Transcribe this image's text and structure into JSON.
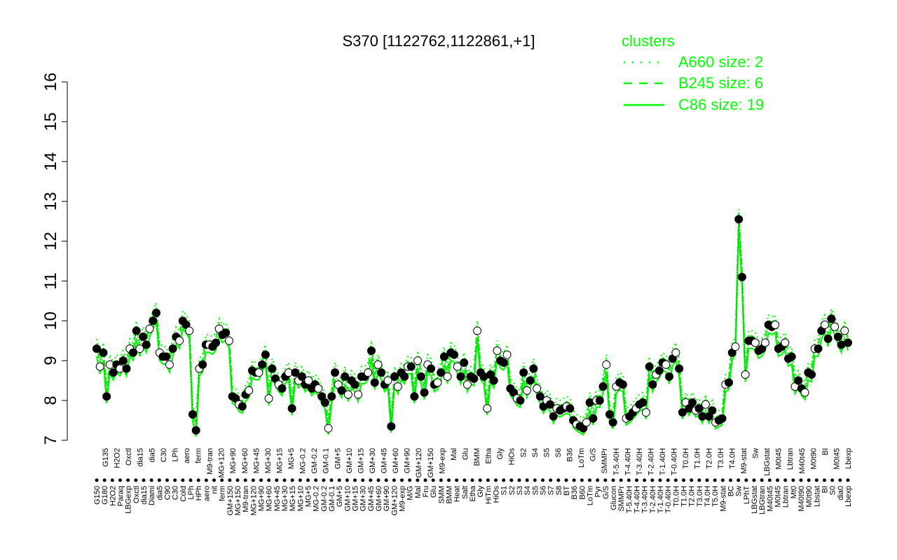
{
  "colors": {
    "line": "#00ff00",
    "axis": "#000000",
    "point_stroke": "#000000",
    "point_fill_open": "#ffffff",
    "point_fill_closed": "#000000"
  },
  "chart_data": {
    "type": "line",
    "title": "S370 [1122762,1122861,+1]",
    "xlabel": "",
    "ylabel": "",
    "ylim": [
      7,
      16
    ],
    "yticks": [
      7,
      8,
      9,
      10,
      11,
      12,
      13,
      14,
      15,
      16
    ],
    "legend": {
      "title": "clusters",
      "placement": "top-right",
      "entries": [
        {
          "label": "A660 size: 2",
          "style": "dotted"
        },
        {
          "label": "B245 size: 6",
          "style": "dashed"
        },
        {
          "label": "C86 size: 19",
          "style": "solid"
        }
      ]
    },
    "x_tick_labels": [
      "G150",
      "G180",
      "H2O2",
      "Paraq",
      "LBGexp",
      "Oxctl",
      "dia15",
      "Diami",
      "dia5",
      "C90",
      "C30",
      "Cold",
      "LPh",
      "HPh",
      "aero",
      "nit",
      "ferm",
      "GM+150",
      "MG+150",
      "M9-tran",
      "MG+120",
      "MG+90",
      "MG+60",
      "MG+45",
      "MG+30",
      "MG+15",
      "MG+10",
      "MG+5",
      "MG-0.2",
      "GM-0.2",
      "GM-0.1",
      "GM+5",
      "GM+10",
      "GM+15",
      "GM+30",
      "GM+45",
      "GM+60",
      "GM+90",
      "GM+120",
      "M9-exp",
      "M/G",
      "Mal",
      "Fru",
      "Glu",
      "SMM",
      "BMM",
      "Heat",
      "Salt",
      "Etha",
      "Gly",
      "HiTm",
      "HiOs",
      "S1",
      "S2",
      "S3",
      "S4",
      "S5",
      "S6",
      "S7",
      "S8",
      "BT",
      "B36",
      "B60",
      "LoTm",
      "Pyr",
      "G/S",
      "Glucon",
      "SMMPr",
      "T-5.40H",
      "T-4.40H",
      "T-3.40H",
      "T-2.40H",
      "T-1.40H",
      "T-0.40H",
      "T0.0H",
      "T1.0H",
      "T2.0H",
      "T3.0H",
      "T4.0H",
      "T5.0H",
      "M9-stat",
      "BC",
      "Sw",
      "LPhT",
      "LBGstat",
      "LBGtran",
      "M40t45",
      "M0t45",
      "Lbtran",
      "Mt0",
      "M40t90",
      "M0t90",
      "Lbstat",
      "BI",
      "S0",
      "dia0",
      "Lbexp"
    ],
    "x_tick_labels_top": [
      "G135",
      "H2O2",
      "Oxctl",
      "dia15",
      "dia5",
      "C30",
      "LPh",
      "aero",
      "ferm",
      "M9-tran",
      "MG+120",
      "MG+90",
      "MG+60",
      "MG+45",
      "MG+30",
      "MG+15",
      "MG+5",
      "MG-0.2",
      "GM-0.2",
      "GM-0.1",
      "GM+5",
      "GM+10",
      "GM+15",
      "GM+30",
      "GM+45",
      "GM+60",
      "GM+90",
      "GM+120",
      "GM+150",
      "M9-exp",
      "Mal",
      "Glu",
      "BMM",
      "Etha",
      "Gly",
      "HiOs",
      "S2",
      "S4",
      "S5",
      "S6",
      "B36",
      "LoTm",
      "G/S",
      "SMMPr",
      "T-5.40H",
      "T-4.40H",
      "T-3.40H",
      "T-2.40H",
      "T-1.40H",
      "T-0.40H",
      "T0.0H",
      "T1.0H",
      "T2.0H",
      "T3.0H",
      "T4.0H",
      "M9-stat",
      "Sw",
      "LBGstat",
      "M0t45",
      "Lbtran",
      "M40t45",
      "M0t90",
      "BI",
      "M0t45",
      "Lbexp"
    ],
    "series": [
      {
        "values": [
          9.3,
          8.85,
          9.2,
          8.1,
          8.9,
          8.7,
          8.9,
          8.8,
          9.0,
          8.8,
          9.3,
          9.2,
          9.75,
          9.3,
          9.6,
          9.4,
          9.8,
          10.0,
          10.2,
          9.2,
          9.1,
          9.1,
          8.9,
          9.3,
          9.6,
          9.5,
          10.0,
          9.9,
          9.75,
          7.65,
          7.25,
          8.8,
          8.9,
          9.4,
          9.4,
          9.35,
          9.45,
          9.8,
          9.65,
          9.7,
          9.5,
          8.1,
          8.05,
          7.9,
          7.85,
          8.15,
          8.25,
          8.75,
          8.7,
          8.7,
          8.9,
          9.15,
          8.05,
          8.8,
          8.55,
          8.4,
          8.3,
          8.6,
          8.7,
          7.8,
          8.7,
          8.5,
          8.6,
          8.4,
          8.5,
          8.3,
          8.4,
          8.3,
          8.1,
          7.95,
          7.3,
          8.1,
          8.7,
          8.4,
          8.25,
          8.6,
          8.15,
          8.5,
          8.4,
          8.15,
          8.6,
          8.6,
          8.7,
          9.25,
          8.45,
          8.9,
          8.7,
          8.4,
          8.5,
          7.35,
          8.6,
          8.35,
          8.7,
          8.6,
          8.85,
          8.85,
          8.1,
          9.0,
          8.6,
          8.2,
          8.9,
          8.8,
          8.4,
          8.45,
          8.7,
          9.1,
          8.6,
          9.2,
          9.15,
          8.85,
          8.6,
          8.95,
          8.4,
          8.6,
          8.55,
          9.75,
          8.7,
          8.6,
          7.8,
          8.65,
          8.5,
          9.25,
          9.0,
          8.95,
          9.15,
          8.3,
          8.2,
          8.05,
          8.0,
          8.7,
          8.25,
          8.5,
          8.8,
          8.3,
          8.1,
          7.85,
          8.0,
          7.9,
          7.6,
          7.8,
          7.75,
          7.8,
          7.85,
          7.8,
          7.5,
          7.4,
          7.35,
          7.3,
          7.45,
          7.95,
          7.55,
          8.0,
          8.0,
          8.35,
          8.9,
          7.65,
          7.45,
          8.35,
          8.45,
          8.4,
          7.55,
          7.6,
          7.7,
          7.8,
          7.9,
          7.95,
          7.7,
          8.85,
          8.4,
          8.65,
          8.75,
          8.95,
          8.9,
          8.6,
          9.05,
          9.2,
          8.8,
          7.7,
          7.95,
          7.8,
          7.95,
          7.75,
          7.8,
          7.6,
          7.9,
          7.6,
          7.75,
          7.45,
          7.5,
          7.55,
          8.4,
          8.45,
          9.2,
          9.35,
          12.55,
          11.1,
          8.65,
          9.5,
          9.5,
          9.45,
          9.25,
          9.3,
          9.45,
          9.9,
          9.85,
          9.9,
          9.3,
          9.35,
          9.45,
          9.05,
          9.1,
          8.35,
          8.5,
          8.3,
          8.2,
          8.7,
          8.65,
          9.3,
          9.3,
          9.75,
          9.9,
          9.55,
          10.05,
          9.85,
          9.6,
          9.4,
          9.75,
          9.45
        ]
      }
    ]
  }
}
